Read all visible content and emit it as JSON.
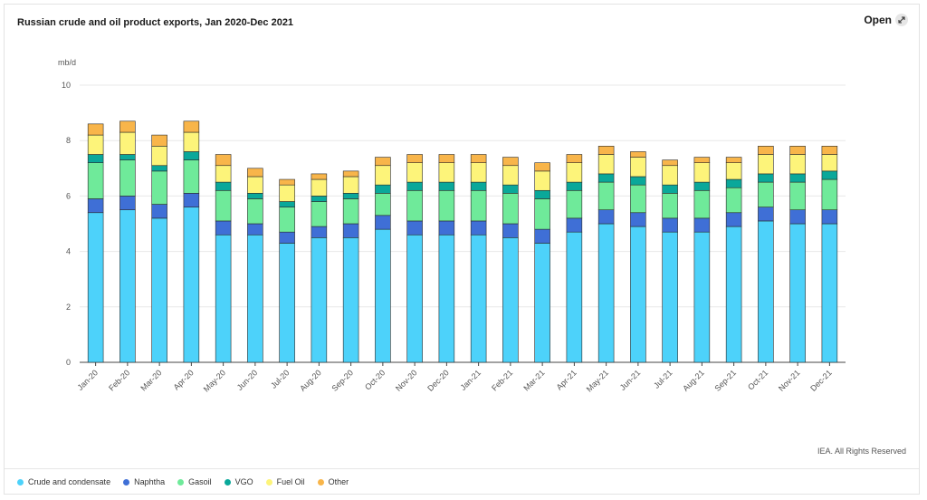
{
  "header": {
    "title": "Russian crude and oil product exports, Jan 2020-Dec 2021",
    "open_label": "Open",
    "open_icon": "expand-arrows-icon"
  },
  "footer": {
    "credit": "IEA. All Rights Reserved"
  },
  "chart_data": {
    "type": "bar",
    "stacked": true,
    "title": "Russian crude and oil product exports, Jan 2020-Dec 2021",
    "ylabel": "mb/d",
    "xlabel": "",
    "ylim": [
      0,
      10
    ],
    "yticks": [
      0,
      2,
      4,
      6,
      8,
      10
    ],
    "grid": true,
    "legend_position": "bottom-left",
    "categories": [
      "Jan-20",
      "Feb-20",
      "Mar-20",
      "Apr-20",
      "May-20",
      "Jun-20",
      "Jul-20",
      "Aug-20",
      "Sep-20",
      "Oct-20",
      "Nov-20",
      "Dec-20",
      "Jan-21",
      "Feb-21",
      "Mar-21",
      "Apr-21",
      "May-21",
      "Jun-21",
      "Jul-21",
      "Aug-21",
      "Sep-21",
      "Oct-21",
      "Nov-21",
      "Dec-21"
    ],
    "series": [
      {
        "name": "Crude and condensate",
        "color": "#4dd2fa",
        "values": [
          5.4,
          5.5,
          5.2,
          5.6,
          4.6,
          4.6,
          4.3,
          4.5,
          4.5,
          4.8,
          4.6,
          4.6,
          4.6,
          4.5,
          4.3,
          4.7,
          5.0,
          4.9,
          4.7,
          4.7,
          4.9,
          5.1,
          5.0,
          5.0
        ]
      },
      {
        "name": "Naphtha",
        "color": "#3f6fd6",
        "values": [
          0.5,
          0.5,
          0.5,
          0.5,
          0.5,
          0.4,
          0.4,
          0.4,
          0.5,
          0.5,
          0.5,
          0.5,
          0.5,
          0.5,
          0.5,
          0.5,
          0.5,
          0.5,
          0.5,
          0.5,
          0.5,
          0.5,
          0.5,
          0.5
        ]
      },
      {
        "name": "Gasoil",
        "color": "#6fea9a",
        "values": [
          1.3,
          1.3,
          1.2,
          1.2,
          1.1,
          0.9,
          0.9,
          0.9,
          0.9,
          0.8,
          1.1,
          1.1,
          1.1,
          1.1,
          1.1,
          1.0,
          1.0,
          1.0,
          0.9,
          1.0,
          0.9,
          0.9,
          1.0,
          1.1
        ]
      },
      {
        "name": "VGO",
        "color": "#0aa89a",
        "values": [
          0.3,
          0.2,
          0.2,
          0.3,
          0.3,
          0.2,
          0.2,
          0.2,
          0.2,
          0.3,
          0.3,
          0.3,
          0.3,
          0.3,
          0.3,
          0.3,
          0.3,
          0.3,
          0.3,
          0.3,
          0.3,
          0.3,
          0.3,
          0.3
        ]
      },
      {
        "name": "Fuel Oil",
        "color": "#fdf47a",
        "values": [
          0.7,
          0.8,
          0.7,
          0.7,
          0.6,
          0.6,
          0.6,
          0.6,
          0.6,
          0.7,
          0.7,
          0.7,
          0.7,
          0.7,
          0.7,
          0.7,
          0.7,
          0.7,
          0.7,
          0.7,
          0.6,
          0.7,
          0.7,
          0.6
        ]
      },
      {
        "name": "Other",
        "color": "#f8b54a",
        "values": [
          0.4,
          0.4,
          0.4,
          0.4,
          0.4,
          0.3,
          0.2,
          0.2,
          0.2,
          0.3,
          0.3,
          0.3,
          0.3,
          0.3,
          0.3,
          0.3,
          0.3,
          0.2,
          0.2,
          0.2,
          0.2,
          0.3,
          0.3,
          0.3
        ]
      }
    ]
  }
}
